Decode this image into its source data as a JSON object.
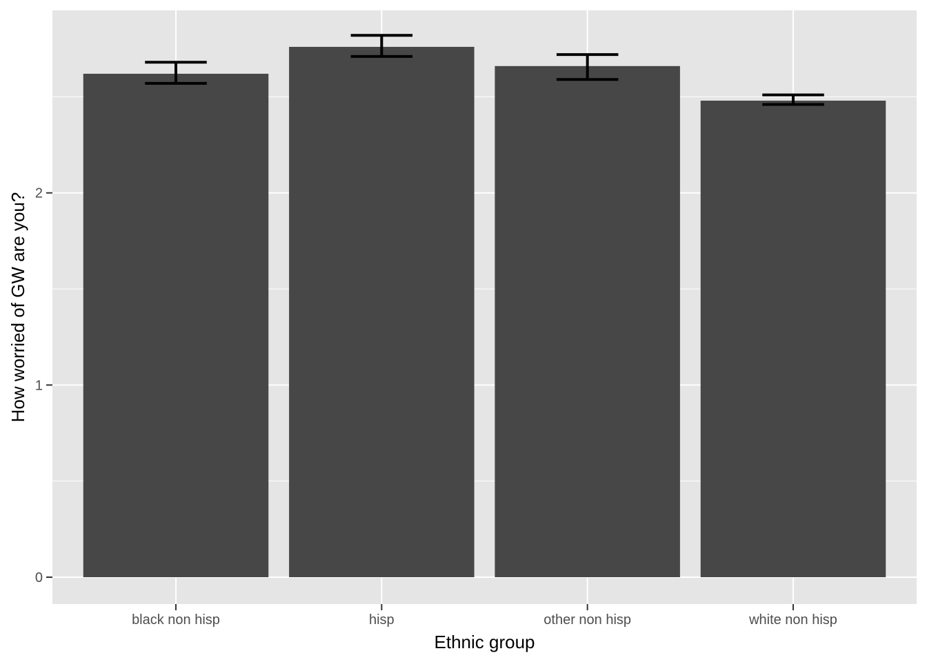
{
  "chart_data": {
    "type": "bar",
    "title": "",
    "xlabel": "Ethnic group",
    "ylabel": "How worried of GW are you?",
    "categories": [
      "black non hisp",
      "hisp",
      "other non hisp",
      "white non hisp"
    ],
    "values": [
      2.62,
      2.76,
      2.66,
      2.48
    ],
    "error_bars": {
      "lower": [
        2.57,
        2.71,
        2.59,
        2.46
      ],
      "upper": [
        2.68,
        2.82,
        2.72,
        2.51
      ]
    },
    "y_ticks": [
      0,
      1,
      2
    ],
    "ylim": [
      -0.14,
      2.95
    ],
    "grid": true,
    "legend": "none",
    "colors": {
      "panel": "#e5e5e5",
      "grid": "#ffffff",
      "bar": "#474747",
      "error_bar": "#000000",
      "tick": "#333333"
    }
  }
}
